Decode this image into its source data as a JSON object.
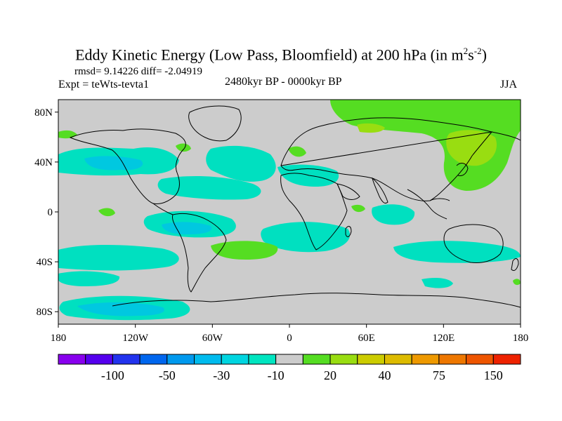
{
  "header": {
    "title_main": "Eddy Kinetic Energy (Low Pass, Bloomfield) at 200 hPa (in m",
    "title_sup1": "2",
    "title_s": "s",
    "title_sup2": "-2",
    "title_close": ")",
    "stats": "rmsd= 9.14226 diff= -2.04919",
    "experiment": "Expt = teWts-tevta1",
    "period": "2480kyr BP - 0000kyr BP",
    "season": "JJA"
  },
  "map": {
    "lat_ticks": [
      {
        "label": "80N",
        "value": 80
      },
      {
        "label": "40N",
        "value": 40
      },
      {
        "label": "0",
        "value": 0
      },
      {
        "label": "40S",
        "value": -40
      },
      {
        "label": "80S",
        "value": -80
      }
    ],
    "lon_ticks": [
      {
        "label": "180",
        "value": -180
      },
      {
        "label": "120W",
        "value": -120
      },
      {
        "label": "60W",
        "value": -60
      },
      {
        "label": "0",
        "value": 0
      },
      {
        "label": "60E",
        "value": 60
      },
      {
        "label": "120E",
        "value": 120
      },
      {
        "label": "180",
        "value": 180
      }
    ],
    "lat_range": [
      -90,
      90
    ],
    "lon_range": [
      -180,
      180
    ],
    "colors": {
      "background": "#cccccc",
      "neg_light": "#00e0c0",
      "neg_mid": "#00c8e0",
      "pos_light": "#55dd22",
      "pos_mid": "#99dd11"
    }
  },
  "colorbar": {
    "colors": [
      "#8800ee",
      "#5500ee",
      "#2233ee",
      "#0066ee",
      "#0099ee",
      "#00bbee",
      "#00d5e0",
      "#00e5c0",
      "#cccccc",
      "#55dd22",
      "#99dd11",
      "#cccc00",
      "#ddbb00",
      "#ee9900",
      "#ee7700",
      "#ee5500",
      "#ee2200"
    ],
    "labels": [
      {
        "text": "-100",
        "index": 2
      },
      {
        "text": "-50",
        "index": 4
      },
      {
        "text": "-30",
        "index": 6
      },
      {
        "text": "-10",
        "index": 8
      },
      {
        "text": "20",
        "index": 10
      },
      {
        "text": "40",
        "index": 12
      },
      {
        "text": "75",
        "index": 14
      },
      {
        "text": "150",
        "index": 16
      }
    ]
  }
}
